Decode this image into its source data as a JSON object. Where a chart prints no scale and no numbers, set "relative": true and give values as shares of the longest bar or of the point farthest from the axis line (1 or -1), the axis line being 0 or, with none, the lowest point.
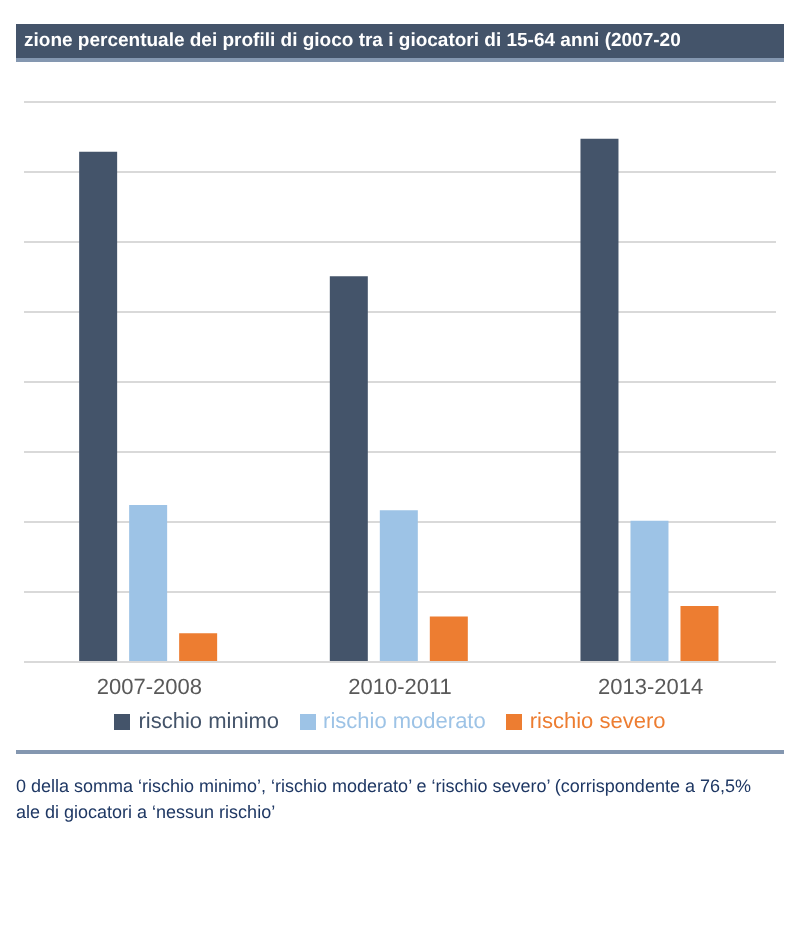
{
  "chart_data": {
    "type": "bar",
    "title": "zione percentuale dei profili di gioco tra i giocatori di 15-64 anni (2007-20",
    "categories": [
      "2007-2008",
      "2010-2011",
      "2013-2014"
    ],
    "relative": true,
    "grid": "y",
    "legend": "bottom",
    "series": [
      {
        "name": "rischio minimo",
        "color": "#44546a",
        "values": [
          0.975,
          0.737,
          1
        ]
      },
      {
        "name": "rischio moderato",
        "color": "#9dc3e6",
        "values": [
          0.3,
          0.29,
          0.27
        ]
      },
      {
        "name": "rischio severo",
        "color": "#ed7d31",
        "values": [
          0.055,
          0.087,
          0.107
        ]
      }
    ],
    "annotations": [
      "0 della somma ‘rischio minimo’, ‘rischio moderato’ e ‘rischio severo’ (corrispondente a 76,5% ",
      "ale di giocatori a ‘nessun rischio’"
    ]
  }
}
